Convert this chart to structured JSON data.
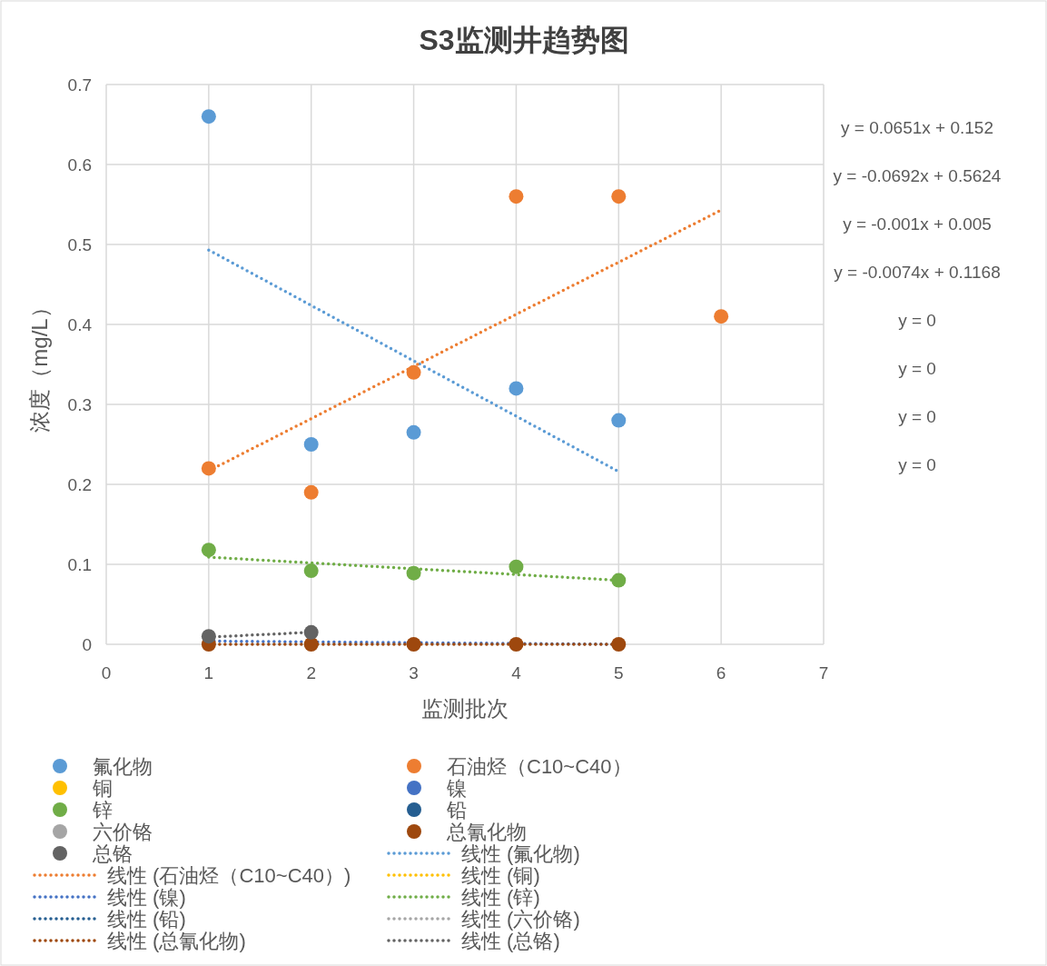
{
  "chart_data": {
    "type": "scatter",
    "title": "S3监测井趋势图",
    "xlabel": "监测批次",
    "ylabel": "浓度（mg/L）",
    "xlim": [
      0,
      7
    ],
    "xticks": [
      0,
      1,
      2,
      3,
      4,
      5,
      6,
      7
    ],
    "ylim": [
      0,
      0.7
    ],
    "yticks": [
      0,
      0.1,
      0.2,
      0.3,
      0.4,
      0.5,
      0.6,
      0.7
    ],
    "grid": true,
    "legend": "bottom",
    "marker": "circle",
    "annotations": [
      "y = 0.0651x + 0.152",
      "y = -0.0692x + 0.5624",
      "y = -0.001x + 0.005",
      "y = -0.0074x + 0.1168",
      "y = 0",
      "y = 0",
      "y = 0",
      "y = 0"
    ],
    "series": [
      {
        "name": "氟化物",
        "color": "#5b9bd5",
        "x": [
          1,
          2,
          3,
          4,
          5
        ],
        "values": [
          0.66,
          0.25,
          0.265,
          0.32,
          0.28
        ]
      },
      {
        "name": "石油烃（C10~C40）",
        "color": "#ed7d31",
        "x": [
          1,
          2,
          3,
          4,
          5,
          6
        ],
        "values": [
          0.22,
          0.19,
          0.34,
          0.56,
          0.56,
          0.41
        ]
      },
      {
        "name": "铜",
        "color": "#ffc000"
      },
      {
        "name": "镍",
        "color": "#4472c4"
      },
      {
        "name": "锌",
        "color": "#70ad47",
        "x": [
          1,
          2,
          3,
          4,
          5
        ],
        "values": [
          0.118,
          0.092,
          0.089,
          0.097,
          0.08
        ]
      },
      {
        "name": "铅",
        "color": "#255e91"
      },
      {
        "name": "六价铬",
        "color": "#a5a5a5"
      },
      {
        "name": "总氰化物",
        "color": "#9e480e",
        "x": [
          1,
          2,
          3,
          4,
          5
        ],
        "values": [
          0,
          0,
          0,
          0,
          0
        ]
      },
      {
        "name": "总铬",
        "color": "#636363",
        "x": [
          1,
          2
        ],
        "values": [
          0.01,
          0.015
        ]
      },
      {
        "name": "线性 (氟化物)",
        "type": "line",
        "line_style": "dotted",
        "marker": "none",
        "color": "#5b9bd5",
        "x": [
          1,
          5
        ],
        "values": [
          0.493,
          0.216
        ]
      },
      {
        "name": "线性 (石油烃（C10~C40）)",
        "type": "line",
        "line_style": "dotted",
        "marker": "none",
        "color": "#ed7d31",
        "x": [
          1,
          6
        ],
        "values": [
          0.217,
          0.543
        ]
      },
      {
        "name": "线性 (铜)",
        "type": "line",
        "line_style": "dotted",
        "color": "#ffc000"
      },
      {
        "name": "线性 (镍)",
        "type": "line",
        "line_style": "dotted",
        "marker": "none",
        "color": "#4472c4",
        "x": [
          1,
          5
        ],
        "values": [
          0.004,
          0
        ]
      },
      {
        "name": "线性 (锌)",
        "type": "line",
        "line_style": "dotted",
        "marker": "none",
        "color": "#70ad47",
        "x": [
          1,
          5
        ],
        "values": [
          0.109,
          0.08
        ]
      },
      {
        "name": "线性 (铅)",
        "type": "line",
        "line_style": "dotted",
        "color": "#255e91"
      },
      {
        "name": "线性 (六价铬)",
        "type": "line",
        "line_style": "dotted",
        "color": "#a5a5a5"
      },
      {
        "name": "线性 (总氰化物)",
        "type": "line",
        "line_style": "dotted",
        "marker": "none",
        "color": "#9e480e",
        "x": [
          1,
          5
        ],
        "values": [
          0,
          0
        ]
      },
      {
        "name": "线性 (总铬)",
        "type": "line",
        "line_style": "dotted",
        "marker": "none",
        "color": "#636363",
        "x": [
          1,
          2
        ],
        "values": [
          0.009,
          0.015
        ]
      }
    ]
  }
}
